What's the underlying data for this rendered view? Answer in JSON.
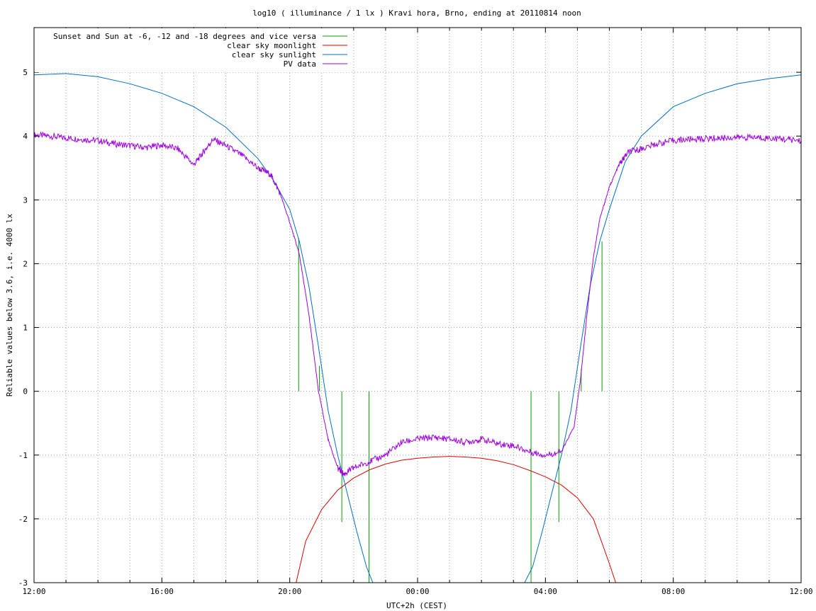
{
  "chart_data": {
    "type": "line",
    "title": "log10 ( illuminance / 1 lx ) Kravi hora, Brno, ending at 20110814 noon",
    "xlabel": "UTC+2h (CEST)",
    "ylabel": "Reliable values below 3.6, i.e. 4000 lx",
    "xlim": [
      12,
      36
    ],
    "ylim": [
      -3,
      5.7
    ],
    "x_ticks": [
      12,
      16,
      20,
      24,
      28,
      32,
      36
    ],
    "x_tick_labels": [
      "12:00",
      "16:00",
      "20:00",
      "00:00",
      "04:00",
      "08:00",
      "12:00"
    ],
    "y_ticks": [
      -3,
      -2,
      -1,
      0,
      1,
      2,
      3,
      4,
      5
    ],
    "y_tick_labels": [
      "-3",
      "-2",
      "-1",
      "0",
      "1",
      "2",
      "3",
      "4",
      "5"
    ],
    "grid": true,
    "legend_position": "top-left",
    "series": [
      {
        "name": "Sunset and Sun at -6, -12 and -18 degrees and vice versa",
        "color": "#00a000",
        "segments": [
          {
            "x": 20.28,
            "y": [
              0,
              2.4
            ]
          },
          {
            "x": 20.93,
            "y": [
              0,
              0.4
            ]
          },
          {
            "x": 21.63,
            "y": [
              -2.05,
              0
            ]
          },
          {
            "x": 22.48,
            "y": [
              -3,
              0
            ]
          },
          {
            "x": 27.55,
            "y": [
              -3,
              0
            ]
          },
          {
            "x": 28.42,
            "y": [
              -2.05,
              0
            ]
          },
          {
            "x": 29.12,
            "y": [
              0,
              0.35
            ]
          },
          {
            "x": 29.77,
            "y": [
              0,
              2.35
            ]
          }
        ]
      },
      {
        "name": "clear sky moonlight",
        "color": "#e00000",
        "x": [
          20.2,
          20.5,
          21.0,
          21.5,
          22.0,
          22.5,
          23.0,
          23.5,
          24.0,
          24.5,
          25.0,
          25.5,
          26.0,
          26.5,
          27.0,
          27.5,
          28.0,
          28.5,
          29.0,
          29.5,
          30.0,
          30.2
        ],
        "y": [
          -3.0,
          -2.35,
          -1.85,
          -1.55,
          -1.36,
          -1.23,
          -1.14,
          -1.08,
          -1.05,
          -1.03,
          -1.02,
          -1.03,
          -1.05,
          -1.09,
          -1.15,
          -1.24,
          -1.34,
          -1.47,
          -1.67,
          -2.0,
          -2.7,
          -3.0
        ]
      },
      {
        "name": "clear sky sunlight",
        "color": "#0070c0",
        "x": [
          12,
          13,
          14,
          15,
          16,
          17,
          18,
          19,
          19.5,
          20,
          20.3,
          20.6,
          20.9,
          21.2,
          21.5,
          21.8,
          22.1,
          22.4,
          22.6,
          27.35,
          27.6,
          27.9,
          28.2,
          28.5,
          28.8,
          29.1,
          29.4,
          29.7,
          30,
          30.5,
          31,
          32,
          33,
          34,
          35,
          36
        ],
        "y": [
          4.96,
          4.98,
          4.93,
          4.82,
          4.67,
          4.46,
          4.14,
          3.65,
          3.3,
          2.85,
          2.35,
          1.65,
          0.7,
          -0.3,
          -1.0,
          -1.6,
          -2.2,
          -2.75,
          -3.0,
          -3.0,
          -2.75,
          -2.2,
          -1.6,
          -1.0,
          -0.3,
          0.7,
          1.65,
          2.35,
          2.85,
          3.6,
          4.0,
          4.46,
          4.67,
          4.82,
          4.9,
          4.96
        ]
      },
      {
        "name": "PV data",
        "color": "#a000e0",
        "x": [
          12,
          12.5,
          13,
          13.5,
          14,
          14.5,
          15,
          15.5,
          16,
          16.5,
          17,
          17.3,
          17.6,
          18,
          18.5,
          19,
          19.4,
          19.7,
          20,
          20.3,
          20.6,
          20.9,
          21.2,
          21.5,
          21.7,
          22,
          22.5,
          23,
          23.5,
          24,
          24.5,
          25,
          25.5,
          26,
          26.5,
          27,
          27.5,
          28,
          28.5,
          28.9,
          29.1,
          29.3,
          29.5,
          29.7,
          30,
          30.3,
          30.6,
          31,
          31.5,
          32,
          32.5,
          33,
          33.5,
          34,
          34.5,
          35,
          35.5,
          36
        ],
        "y": [
          4.02,
          4.0,
          3.97,
          3.95,
          3.93,
          3.88,
          3.85,
          3.82,
          3.86,
          3.8,
          3.55,
          3.75,
          3.95,
          3.85,
          3.7,
          3.5,
          3.4,
          3.1,
          2.65,
          2.15,
          1.2,
          0.0,
          -0.75,
          -1.2,
          -1.3,
          -1.2,
          -1.1,
          -1.0,
          -0.8,
          -0.75,
          -0.72,
          -0.75,
          -0.8,
          -0.75,
          -0.82,
          -0.85,
          -0.95,
          -1.0,
          -0.95,
          -0.55,
          0.2,
          1.2,
          2.1,
          2.7,
          3.2,
          3.55,
          3.75,
          3.8,
          3.88,
          3.93,
          3.95,
          3.96,
          3.97,
          3.98,
          3.98,
          3.97,
          3.95,
          3.93
        ]
      }
    ]
  }
}
